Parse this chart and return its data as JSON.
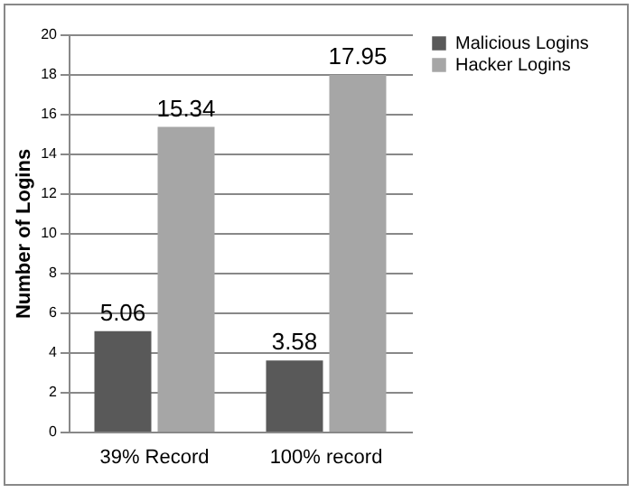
{
  "chart_data": {
    "type": "bar",
    "categories": [
      "39% Record",
      "100% record"
    ],
    "ylabel": "Number of Logins",
    "series": [
      {
        "name": "Malicious Logins",
        "color": "#595959",
        "values": [
          5.06,
          3.58
        ]
      },
      {
        "name": "Hacker Logins",
        "color": "#a6a6a6",
        "values": [
          15.34,
          17.95
        ]
      }
    ],
    "ylim": [
      0,
      20
    ],
    "yticks": [
      0,
      2,
      4,
      6,
      8,
      10,
      12,
      14,
      16,
      18,
      20
    ],
    "grid": "y",
    "legend": "right",
    "data_labels": true
  }
}
